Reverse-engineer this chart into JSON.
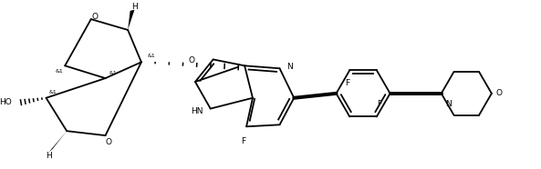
{
  "bg_color": "#ffffff",
  "line_color": "#000000",
  "line_width": 1.3,
  "fig_width": 5.93,
  "fig_height": 1.86,
  "dpi": 100,
  "xlim": [
    0,
    593
  ],
  "ylim": [
    0,
    186
  ]
}
